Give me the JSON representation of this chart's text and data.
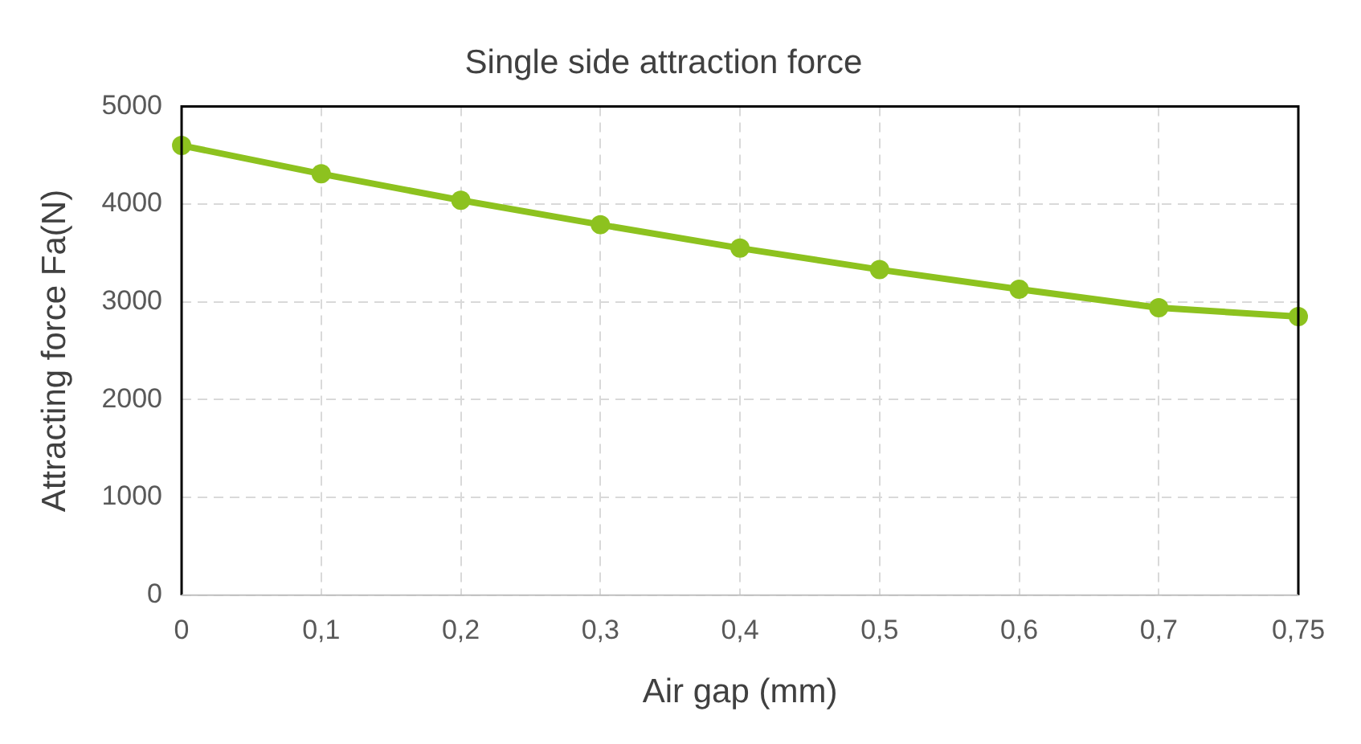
{
  "chart_data": {
    "type": "line",
    "title": "Single side attraction force",
    "xlabel": "Air gap (mm)",
    "ylabel": "Attracting force Fa(N)",
    "categories": [
      "0",
      "0,1",
      "0,2",
      "0,3",
      "0,4",
      "0,5",
      "0,6",
      "0,7",
      "0,75"
    ],
    "series": [
      {
        "color": "#8dc21f",
        "values": [
          4600,
          4310,
          4040,
          3790,
          3550,
          3330,
          3130,
          2940,
          2850
        ]
      }
    ],
    "ylim": [
      0,
      5000
    ],
    "yticks": [
      0,
      1000,
      2000,
      3000,
      4000,
      5000
    ],
    "grid": true,
    "legend": false,
    "marker": "circle",
    "line_style": "solid"
  }
}
